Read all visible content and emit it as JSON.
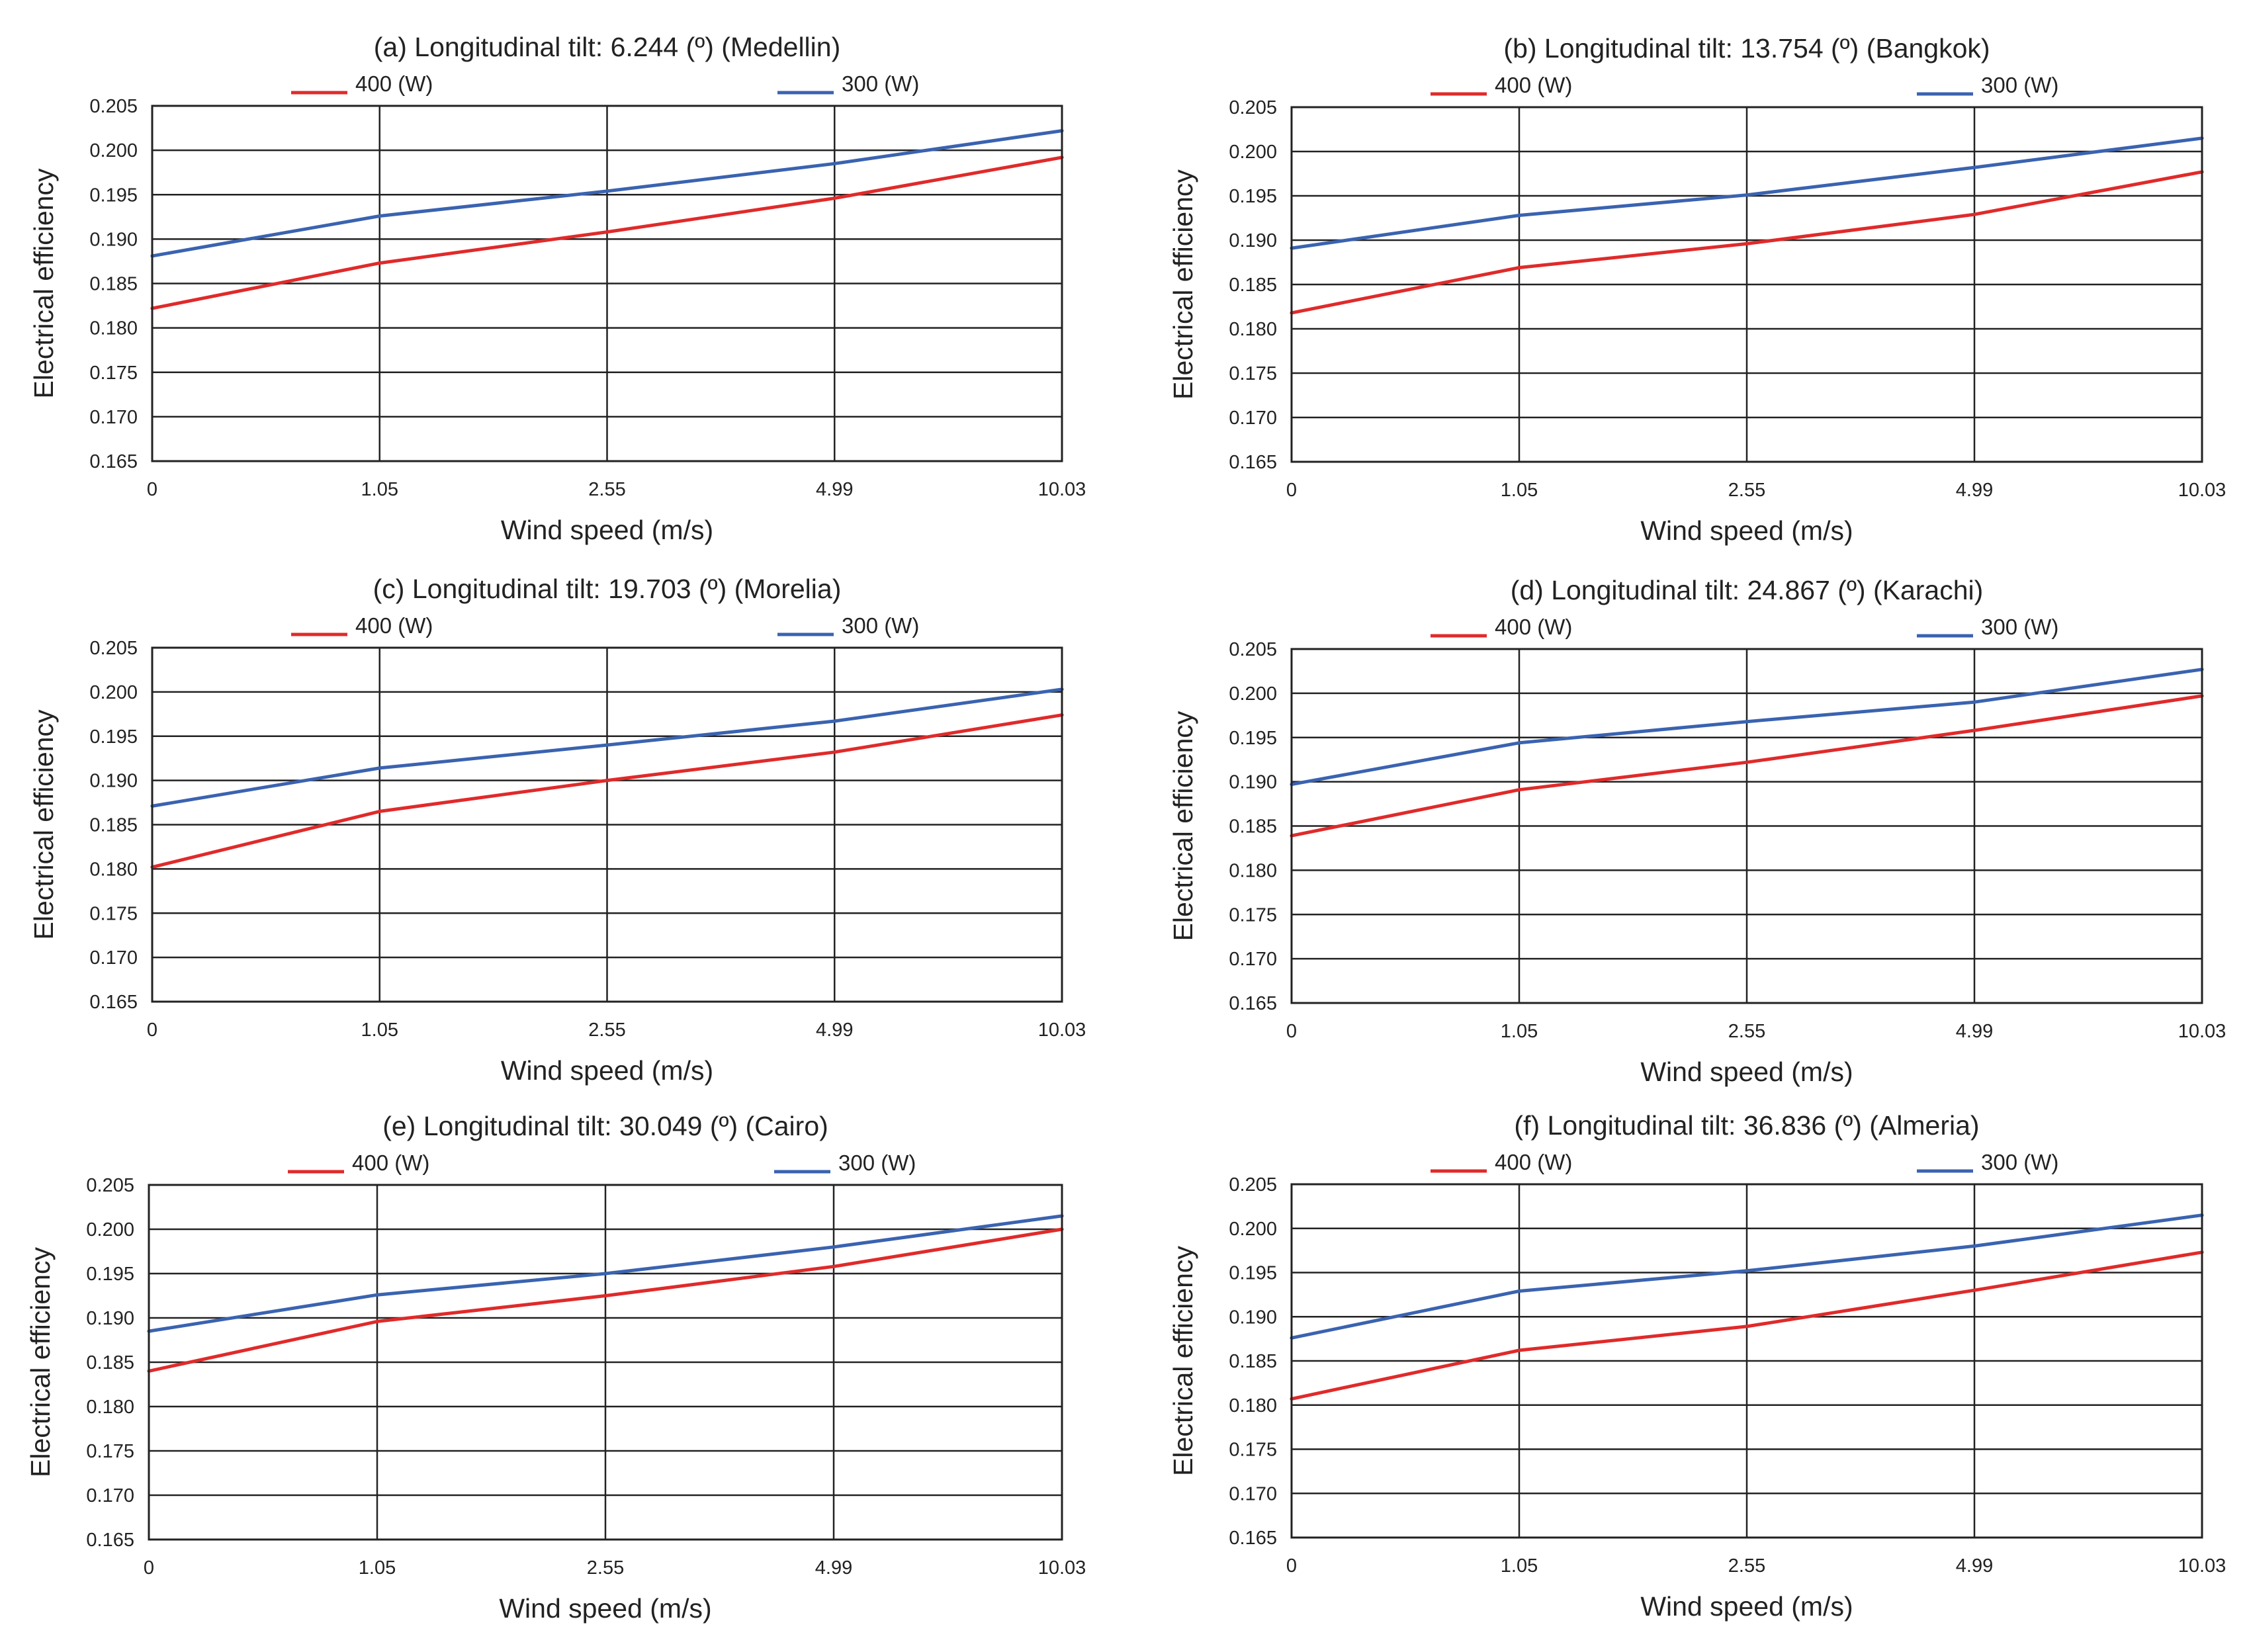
{
  "figure": {
    "colors": {
      "s400": "#e02a2a",
      "s300": "#3a63b0",
      "grid": "#222222"
    }
  },
  "chart_data": [
    {
      "type": "line",
      "title": "(a) Longitudinal tilt: 6.244 (º) (Medellin)",
      "xlabel": "Wind speed (m/s)",
      "ylabel": "Electrical efficiency",
      "categories": [
        "0",
        "1.05",
        "2.55",
        "4.99",
        "10.03"
      ],
      "yticks": [
        "0.205",
        "0.200",
        "0.195",
        "0.190",
        "0.185",
        "0.180",
        "0.175",
        "0.170",
        "0.165"
      ],
      "ylim": [
        0.165,
        0.205
      ],
      "grid": true,
      "legend": "top",
      "series": [
        {
          "name": "400 (W)",
          "color": "#e02a2a",
          "values": [
            0.1822,
            0.1873,
            0.1908,
            0.1946,
            0.1992
          ]
        },
        {
          "name": "300 (W)",
          "color": "#3a63b0",
          "values": [
            0.1881,
            0.1926,
            0.1954,
            0.1985,
            0.2022
          ]
        }
      ]
    },
    {
      "type": "line",
      "title": "(b) Longitudinal tilt: 13.754 (º) (Bangkok)",
      "xlabel": "Wind speed (m/s)",
      "ylabel": "Electrical efficiency",
      "categories": [
        "0",
        "1.05",
        "2.55",
        "4.99",
        "10.03"
      ],
      "yticks": [
        "0.205",
        "0.200",
        "0.195",
        "0.190",
        "0.185",
        "0.180",
        "0.175",
        "0.170",
        "0.165"
      ],
      "ylim": [
        0.165,
        0.205
      ],
      "grid": true,
      "legend": "top",
      "series": [
        {
          "name": "400 (W)",
          "color": "#e02a2a",
          "values": [
            0.1818,
            0.1869,
            0.1896,
            0.1929,
            0.1977
          ]
        },
        {
          "name": "300 (W)",
          "color": "#3a63b0",
          "values": [
            0.1891,
            0.1928,
            0.1951,
            0.1982,
            0.2015
          ]
        }
      ]
    },
    {
      "type": "line",
      "title": "(c) Longitudinal tilt: 19.703 (º) (Morelia)",
      "xlabel": "Wind speed (m/s)",
      "ylabel": "Electrical efficiency",
      "categories": [
        "0",
        "1.05",
        "2.55",
        "4.99",
        "10.03"
      ],
      "yticks": [
        "0.205",
        "0.200",
        "0.195",
        "0.190",
        "0.185",
        "0.180",
        "0.175",
        "0.170",
        "0.165"
      ],
      "ylim": [
        0.165,
        0.205
      ],
      "grid": true,
      "legend": "top",
      "series": [
        {
          "name": "400 (W)",
          "color": "#e02a2a",
          "values": [
            0.1802,
            0.1865,
            0.19,
            0.1932,
            0.1974
          ]
        },
        {
          "name": "300 (W)",
          "color": "#3a63b0",
          "values": [
            0.1871,
            0.1914,
            0.194,
            0.1967,
            0.2003
          ]
        }
      ]
    },
    {
      "type": "line",
      "title": "(d) Longitudinal tilt: 24.867 (º) (Karachi)",
      "xlabel": "Wind speed (m/s)",
      "ylabel": "Electrical efficiency",
      "categories": [
        "0",
        "1.05",
        "2.55",
        "4.99",
        "10.03"
      ],
      "yticks": [
        "0.205",
        "0.200",
        "0.195",
        "0.190",
        "0.185",
        "0.180",
        "0.175",
        "0.170",
        "0.165"
      ],
      "ylim": [
        0.165,
        0.205
      ],
      "grid": true,
      "legend": "top",
      "series": [
        {
          "name": "400 (W)",
          "color": "#e02a2a",
          "values": [
            0.1839,
            0.1891,
            0.1922,
            0.1958,
            0.1997
          ]
        },
        {
          "name": "300 (W)",
          "color": "#3a63b0",
          "values": [
            0.1897,
            0.1944,
            0.1968,
            0.199,
            0.2027
          ]
        }
      ]
    },
    {
      "type": "line",
      "title": "(e) Longitudinal tilt: 30.049 (º) (Cairo)",
      "xlabel": "Wind speed (m/s)",
      "ylabel": "Electrical efficiency",
      "categories": [
        "0",
        "1.05",
        "2.55",
        "4.99",
        "10.03"
      ],
      "yticks": [
        "0.205",
        "0.200",
        "0.195",
        "0.190",
        "0.185",
        "0.180",
        "0.175",
        "0.170",
        "0.165"
      ],
      "ylim": [
        0.165,
        0.205
      ],
      "grid": true,
      "legend": "top",
      "series": [
        {
          "name": "400 (W)",
          "color": "#e02a2a",
          "values": [
            0.184,
            0.1896,
            0.1925,
            0.1958,
            0.2
          ]
        },
        {
          "name": "300 (W)",
          "color": "#3a63b0",
          "values": [
            0.1885,
            0.1926,
            0.195,
            0.198,
            0.2015
          ]
        }
      ]
    },
    {
      "type": "line",
      "title": "(f) Longitudinal tilt: 36.836 (º) (Almeria)",
      "xlabel": "Wind speed (m/s)",
      "ylabel": "Electrical efficiency",
      "categories": [
        "0",
        "1.05",
        "2.55",
        "4.99",
        "10.03"
      ],
      "yticks": [
        "0.205",
        "0.200",
        "0.195",
        "0.190",
        "0.185",
        "0.180",
        "0.175",
        "0.170",
        "0.165"
      ],
      "ylim": [
        0.165,
        0.205
      ],
      "grid": true,
      "legend": "top",
      "series": [
        {
          "name": "400 (W)",
          "color": "#e02a2a",
          "values": [
            0.1807,
            0.1862,
            0.1889,
            0.193,
            0.1973
          ]
        },
        {
          "name": "300 (W)",
          "color": "#3a63b0",
          "values": [
            0.1876,
            0.1929,
            0.1952,
            0.198,
            0.2015
          ]
        }
      ]
    }
  ]
}
